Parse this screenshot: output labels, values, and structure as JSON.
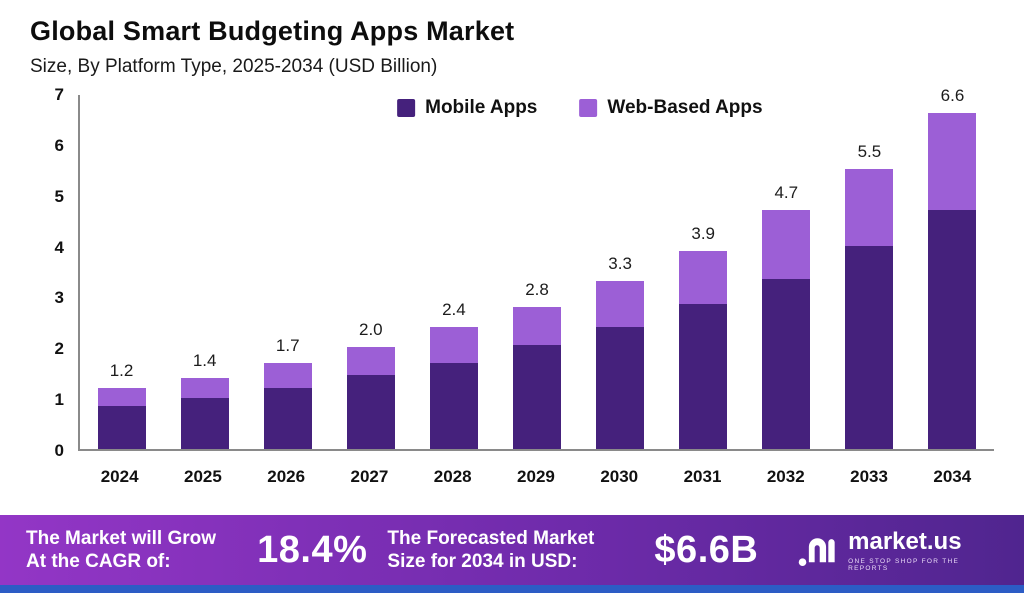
{
  "header": {
    "title": "Global Smart Budgeting Apps Market",
    "subtitle": "Size, By Platform Type, 2025-2034 (USD Billion)"
  },
  "chart_data": {
    "type": "bar",
    "stacked": true,
    "title": "Global Smart Budgeting Apps Market",
    "subtitle": "Size, By Platform Type, 2025-2034 (USD Billion)",
    "categories": [
      "2024",
      "2025",
      "2026",
      "2027",
      "2028",
      "2029",
      "2030",
      "2031",
      "2032",
      "2033",
      "2034"
    ],
    "series": [
      {
        "name": "Mobile Apps",
        "color": "#45217C",
        "values": [
          0.85,
          1.0,
          1.2,
          1.45,
          1.7,
          2.05,
          2.4,
          2.85,
          3.35,
          4.0,
          4.7
        ]
      },
      {
        "name": "Web-Based Apps",
        "color": "#9C5FD6",
        "values": [
          0.35,
          0.4,
          0.5,
          0.55,
          0.7,
          0.75,
          0.9,
          1.05,
          1.35,
          1.5,
          1.9
        ]
      }
    ],
    "totals": [
      1.2,
      1.4,
      1.7,
      2.0,
      2.4,
      2.8,
      3.3,
      3.9,
      4.7,
      5.5,
      6.6
    ],
    "ylim": [
      0,
      7
    ],
    "yticks": [
      0,
      1,
      2,
      3,
      4,
      5,
      6,
      7
    ],
    "grid": false,
    "legend_position": "top-center"
  },
  "colors": {
    "mobile_apps": "#45217C",
    "web_based_apps": "#9C5FD6",
    "banner_gradient_start": "#9336C6",
    "banner_gradient_mid": "#6F2BAB",
    "banner_gradient_end": "#50258F",
    "bottom_strip": "#2C5CC5"
  },
  "banner": {
    "cagr_label": "The Market will Grow At the CAGR of:",
    "cagr_value": "18.4%",
    "forecast_label": "The Forecasted Market Size for 2034 in USD:",
    "forecast_value": "$6.6B",
    "brand": "market.us",
    "brand_tagline": "ONE STOP SHOP FOR THE REPORTS"
  }
}
